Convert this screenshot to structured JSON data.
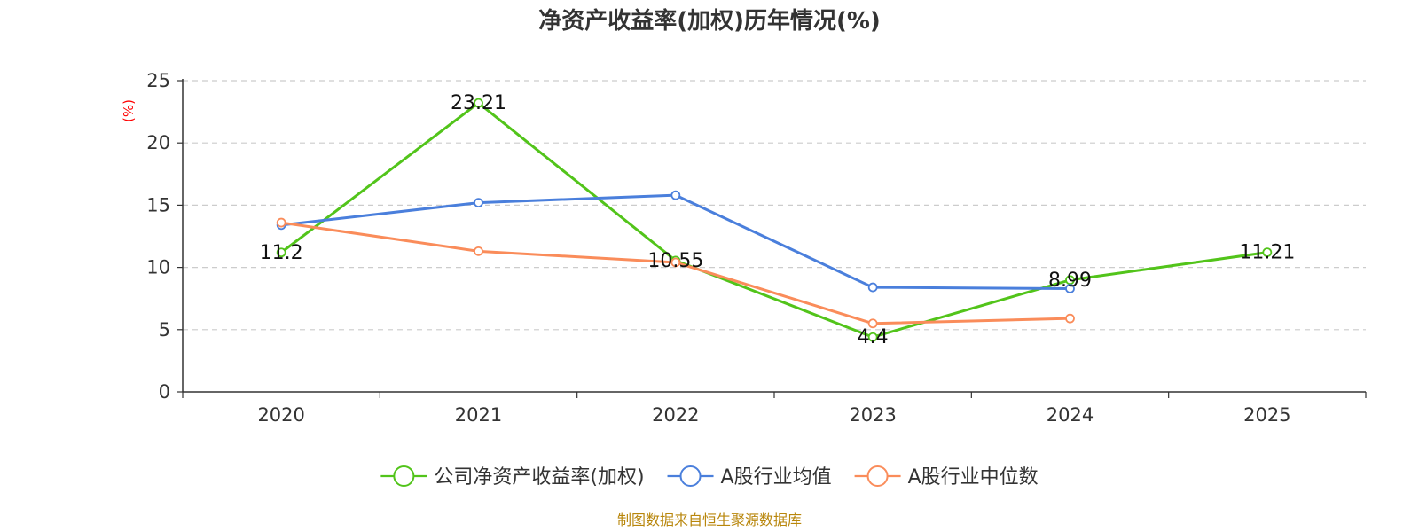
{
  "chart_data": {
    "type": "line",
    "title": "净资产收益率(加权)历年情况(%)",
    "ylabel": "(%)",
    "xlabel": "",
    "categories": [
      "2020",
      "2021",
      "2022",
      "2023",
      "2024",
      "2025"
    ],
    "ylim": [
      0,
      25
    ],
    "yticks": [
      0,
      5,
      10,
      15,
      20,
      25
    ],
    "grid": true,
    "legend_position": "bottom",
    "series": [
      {
        "name": "公司净资产收益率(加权)",
        "color": "#52c41a",
        "values": [
          11.2,
          23.21,
          10.55,
          4.4,
          8.99,
          11.21
        ],
        "labels": [
          "11.2",
          "23.21",
          "10.55",
          "4.4",
          "8.99",
          "11.21"
        ]
      },
      {
        "name": "A股行业均值",
        "color": "#4a7fdc",
        "values": [
          13.4,
          15.2,
          15.8,
          8.4,
          8.3,
          null
        ]
      },
      {
        "name": "A股行业中位数",
        "color": "#fa8c5a",
        "values": [
          13.6,
          11.3,
          10.4,
          5.5,
          5.9,
          null
        ]
      }
    ],
    "source": "制图数据来自恒生聚源数据库"
  }
}
